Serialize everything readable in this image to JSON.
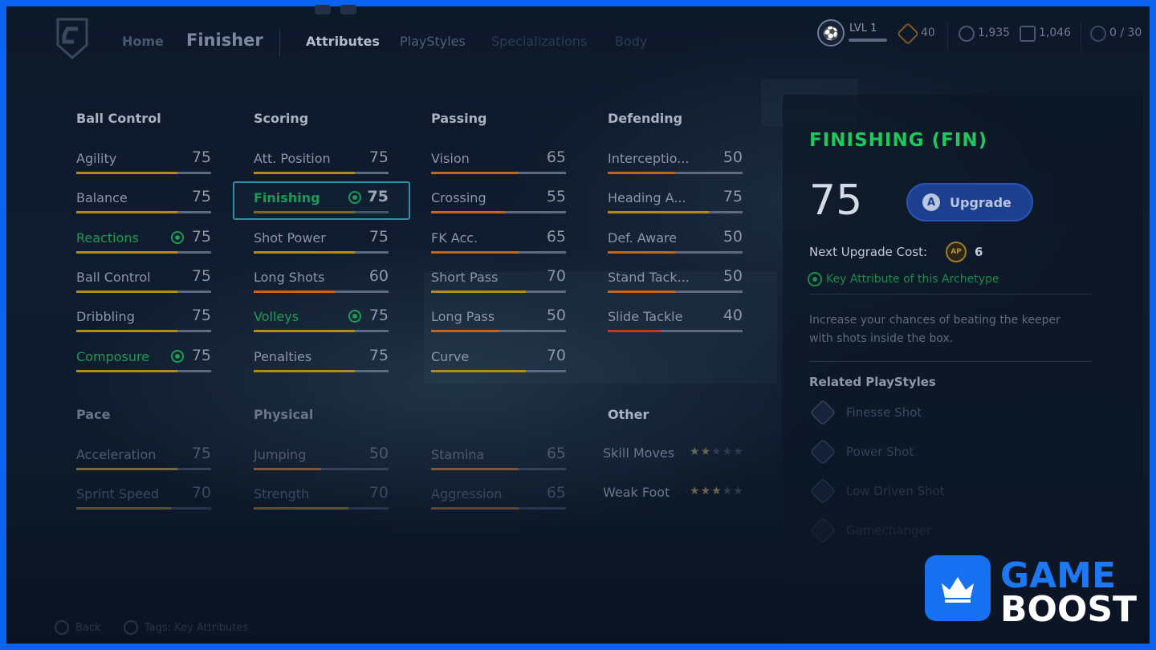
{
  "nav": {
    "home": "Home",
    "title": "Finisher",
    "tabs": [
      "Attributes",
      "PlayStyles",
      "Specializations",
      "Body"
    ]
  },
  "hud": {
    "level": "LVL 1",
    "ap": "40",
    "coins": "1,935",
    "points": "1,046",
    "slots": "0 / 30"
  },
  "columns": [
    {
      "category": "Ball Control",
      "items": [
        {
          "name": "Agility",
          "value": 75,
          "key": false
        },
        {
          "name": "Balance",
          "value": 75,
          "key": false
        },
        {
          "name": "Reactions",
          "value": 75,
          "key": true
        },
        {
          "name": "Ball Control",
          "value": 75,
          "key": false
        },
        {
          "name": "Dribbling",
          "value": 75,
          "key": false
        },
        {
          "name": "Composure",
          "value": 75,
          "key": true
        }
      ]
    },
    {
      "category": "Scoring",
      "items": [
        {
          "name": "Att. Position",
          "value": 75,
          "key": false
        },
        {
          "name": "Finishing",
          "value": 75,
          "key": true
        },
        {
          "name": "Shot Power",
          "value": 75,
          "key": false
        },
        {
          "name": "Long Shots",
          "value": 60,
          "key": false
        },
        {
          "name": "Volleys",
          "value": 75,
          "key": true
        },
        {
          "name": "Penalties",
          "value": 75,
          "key": false
        }
      ]
    },
    {
      "category": "Passing",
      "items": [
        {
          "name": "Vision",
          "value": 65,
          "key": false
        },
        {
          "name": "Crossing",
          "value": 55,
          "key": false
        },
        {
          "name": "FK Acc.",
          "value": 65,
          "key": false
        },
        {
          "name": "Short Pass",
          "value": 70,
          "key": false
        },
        {
          "name": "Long Pass",
          "value": 50,
          "key": false
        },
        {
          "name": "Curve",
          "value": 70,
          "key": false
        }
      ]
    },
    {
      "category": "Defending",
      "items": [
        {
          "name": "Interceptio...",
          "value": 50,
          "key": false
        },
        {
          "name": "Heading A...",
          "value": 75,
          "key": false
        },
        {
          "name": "Def. Aware",
          "value": 50,
          "key": false
        },
        {
          "name": "Stand Tack...",
          "value": 50,
          "key": false
        },
        {
          "name": "Slide Tackle",
          "value": 40,
          "key": false
        }
      ]
    }
  ],
  "lower": {
    "pace": {
      "category": "Pace",
      "items": [
        {
          "name": "Acceleration",
          "value": 75
        },
        {
          "name": "Sprint Speed",
          "value": 70
        }
      ]
    },
    "physical": {
      "category": "Physical",
      "items": [
        {
          "name": "Jumping",
          "value": 50
        },
        {
          "name": "Strength",
          "value": 70
        }
      ]
    },
    "physical2": {
      "items": [
        {
          "name": "Stamina",
          "value": 65
        },
        {
          "name": "Aggression",
          "value": 65
        }
      ]
    },
    "other": {
      "category": "Other",
      "items": [
        {
          "name": "Skill Moves",
          "stars": 2,
          "max": 5
        },
        {
          "name": "Weak Foot",
          "stars": 3,
          "max": 5
        }
      ]
    }
  },
  "detail": {
    "title": "FINISHING (FIN)",
    "value": "75",
    "upgrade_btn_glyph": "A",
    "upgrade_label": "Upgrade",
    "cost_label": "Next Upgrade Cost:",
    "cost_icon_text": "AP",
    "cost_value": "6",
    "key_note": "Key Attribute of this Archetype",
    "description": "Increase your chances of beating the keeper with shots inside the box.",
    "related_title": "Related PlayStyles",
    "playstyles": [
      "Finesse Shot",
      "Power Shot",
      "Low Driven Shot",
      "Gamechanger"
    ]
  },
  "hints": {
    "back": "Back",
    "tags": "Tags: Key Attributes"
  },
  "watermark": {
    "line1": "GAME",
    "line2": "BOOST"
  },
  "colors": {
    "key_green": "#23d56a",
    "bar_gold": "#b58a1c",
    "bar_orange": "#c2651d",
    "bar_red": "#c2391d",
    "accent_blue": "#1670f0"
  }
}
